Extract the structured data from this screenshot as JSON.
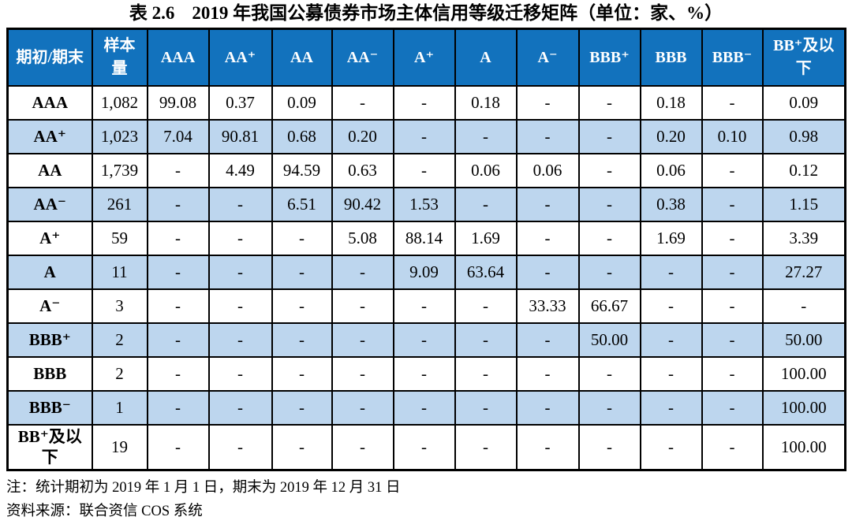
{
  "caption": {
    "label": "表 2.6",
    "text": "2019 年我国公募债券市场主体信用等级迁移矩阵（单位：家、%）"
  },
  "table": {
    "columns": [
      "期初/期末",
      "样本量",
      "AAA",
      "AA⁺",
      "AA",
      "AA⁻",
      "A⁺",
      "A",
      "A⁻",
      "BBB⁺",
      "BBB",
      "BBB⁻",
      "BB⁺及以下"
    ],
    "rows": [
      {
        "label": "AAA",
        "sample": "1,082",
        "values": [
          "99.08",
          "0.37",
          "0.09",
          "-",
          "-",
          "0.18",
          "-",
          "-",
          "0.18",
          "-",
          "0.09"
        ]
      },
      {
        "label": "AA⁺",
        "sample": "1,023",
        "values": [
          "7.04",
          "90.81",
          "0.68",
          "0.20",
          "-",
          "-",
          "-",
          "-",
          "0.20",
          "0.10",
          "0.98"
        ]
      },
      {
        "label": "AA",
        "sample": "1,739",
        "values": [
          "-",
          "4.49",
          "94.59",
          "0.63",
          "-",
          "0.06",
          "0.06",
          "-",
          "0.06",
          "-",
          "0.12"
        ]
      },
      {
        "label": "AA⁻",
        "sample": "261",
        "values": [
          "-",
          "-",
          "6.51",
          "90.42",
          "1.53",
          "-",
          "-",
          "-",
          "0.38",
          "-",
          "1.15"
        ]
      },
      {
        "label": "A⁺",
        "sample": "59",
        "values": [
          "-",
          "-",
          "-",
          "5.08",
          "88.14",
          "1.69",
          "-",
          "-",
          "1.69",
          "-",
          "3.39"
        ]
      },
      {
        "label": "A",
        "sample": "11",
        "values": [
          "-",
          "-",
          "-",
          "-",
          "9.09",
          "63.64",
          "-",
          "-",
          "-",
          "-",
          "27.27"
        ]
      },
      {
        "label": "A⁻",
        "sample": "3",
        "values": [
          "-",
          "-",
          "-",
          "-",
          "-",
          "-",
          "33.33",
          "66.67",
          "-",
          "-",
          "-"
        ]
      },
      {
        "label": "BBB⁺",
        "sample": "2",
        "values": [
          "-",
          "-",
          "-",
          "-",
          "-",
          "-",
          "-",
          "50.00",
          "-",
          "-",
          "50.00"
        ]
      },
      {
        "label": "BBB",
        "sample": "2",
        "values": [
          "-",
          "-",
          "-",
          "-",
          "-",
          "-",
          "-",
          "-",
          "-",
          "-",
          "100.00"
        ]
      },
      {
        "label": "BBB⁻",
        "sample": "1",
        "values": [
          "-",
          "-",
          "-",
          "-",
          "-",
          "-",
          "-",
          "-",
          "-",
          "-",
          "100.00"
        ]
      },
      {
        "label": "BB⁺及以下",
        "sample": "19",
        "values": [
          "-",
          "-",
          "-",
          "-",
          "-",
          "-",
          "-",
          "-",
          "-",
          "-",
          "100.00"
        ]
      }
    ]
  },
  "notes": [
    "注：统计期初为 2019 年 1 月 1 日，期末为 2019 年 12 月 31 日",
    "资料来源：联合资信 COS 系统"
  ],
  "colors": {
    "header_bg": "#1272BD",
    "header_text": "#FFFFFF",
    "stripe_bg": "#BDD6EE",
    "border": "#000000"
  }
}
